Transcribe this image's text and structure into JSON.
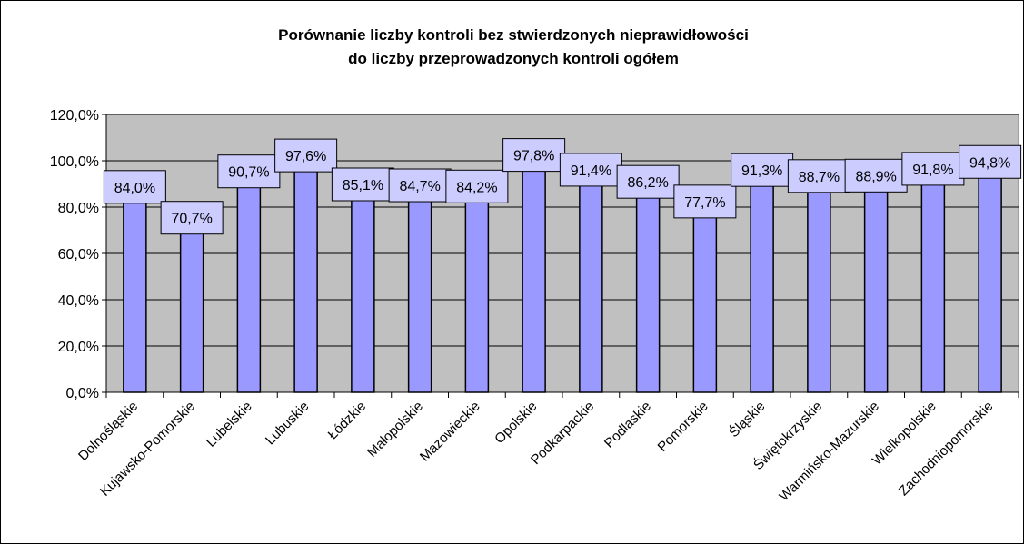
{
  "chart_data": {
    "type": "bar",
    "title_line1": "Porównanie liczby kontroli bez stwierdzonych nieprawidłowości",
    "title_line2": "do liczby przeprowadzonych kontroli ogółem",
    "categories": [
      "Dolnośląskie",
      "Kujawsko-Pomorskie",
      "Lubelskie",
      "Lubuskie",
      "Łódzkie",
      "Małopolskie",
      "Mazowieckie",
      "Opolskie",
      "Podkarpackie",
      "Podlaskie",
      "Pomorskie",
      "Śląskie",
      "Świętokrzyskie",
      "Warmińsko-Mazurskie",
      "Wielkopolskie",
      "Zachodniopomorskie"
    ],
    "values": [
      84.0,
      70.7,
      90.7,
      97.6,
      85.1,
      84.7,
      84.2,
      97.8,
      91.4,
      86.2,
      77.7,
      91.3,
      88.7,
      88.9,
      91.8,
      94.8
    ],
    "data_labels": [
      "84,0%",
      "70,7%",
      "90,7%",
      "97,6%",
      "85,1%",
      "84,7%",
      "84,2%",
      "97,8%",
      "91,4%",
      "86,2%",
      "77,7%",
      "91,3%",
      "88,7%",
      "88,9%",
      "91,8%",
      "94,8%"
    ],
    "y_ticks": [
      "0,0%",
      "20,0%",
      "40,0%",
      "60,0%",
      "80,0%",
      "100,0%",
      "120,0%"
    ],
    "ylim": [
      0,
      120
    ],
    "grid": true,
    "colors": {
      "bar": "#9999ff",
      "label_box": "#ccccff",
      "plot_bg": "#c0c0c0"
    }
  }
}
